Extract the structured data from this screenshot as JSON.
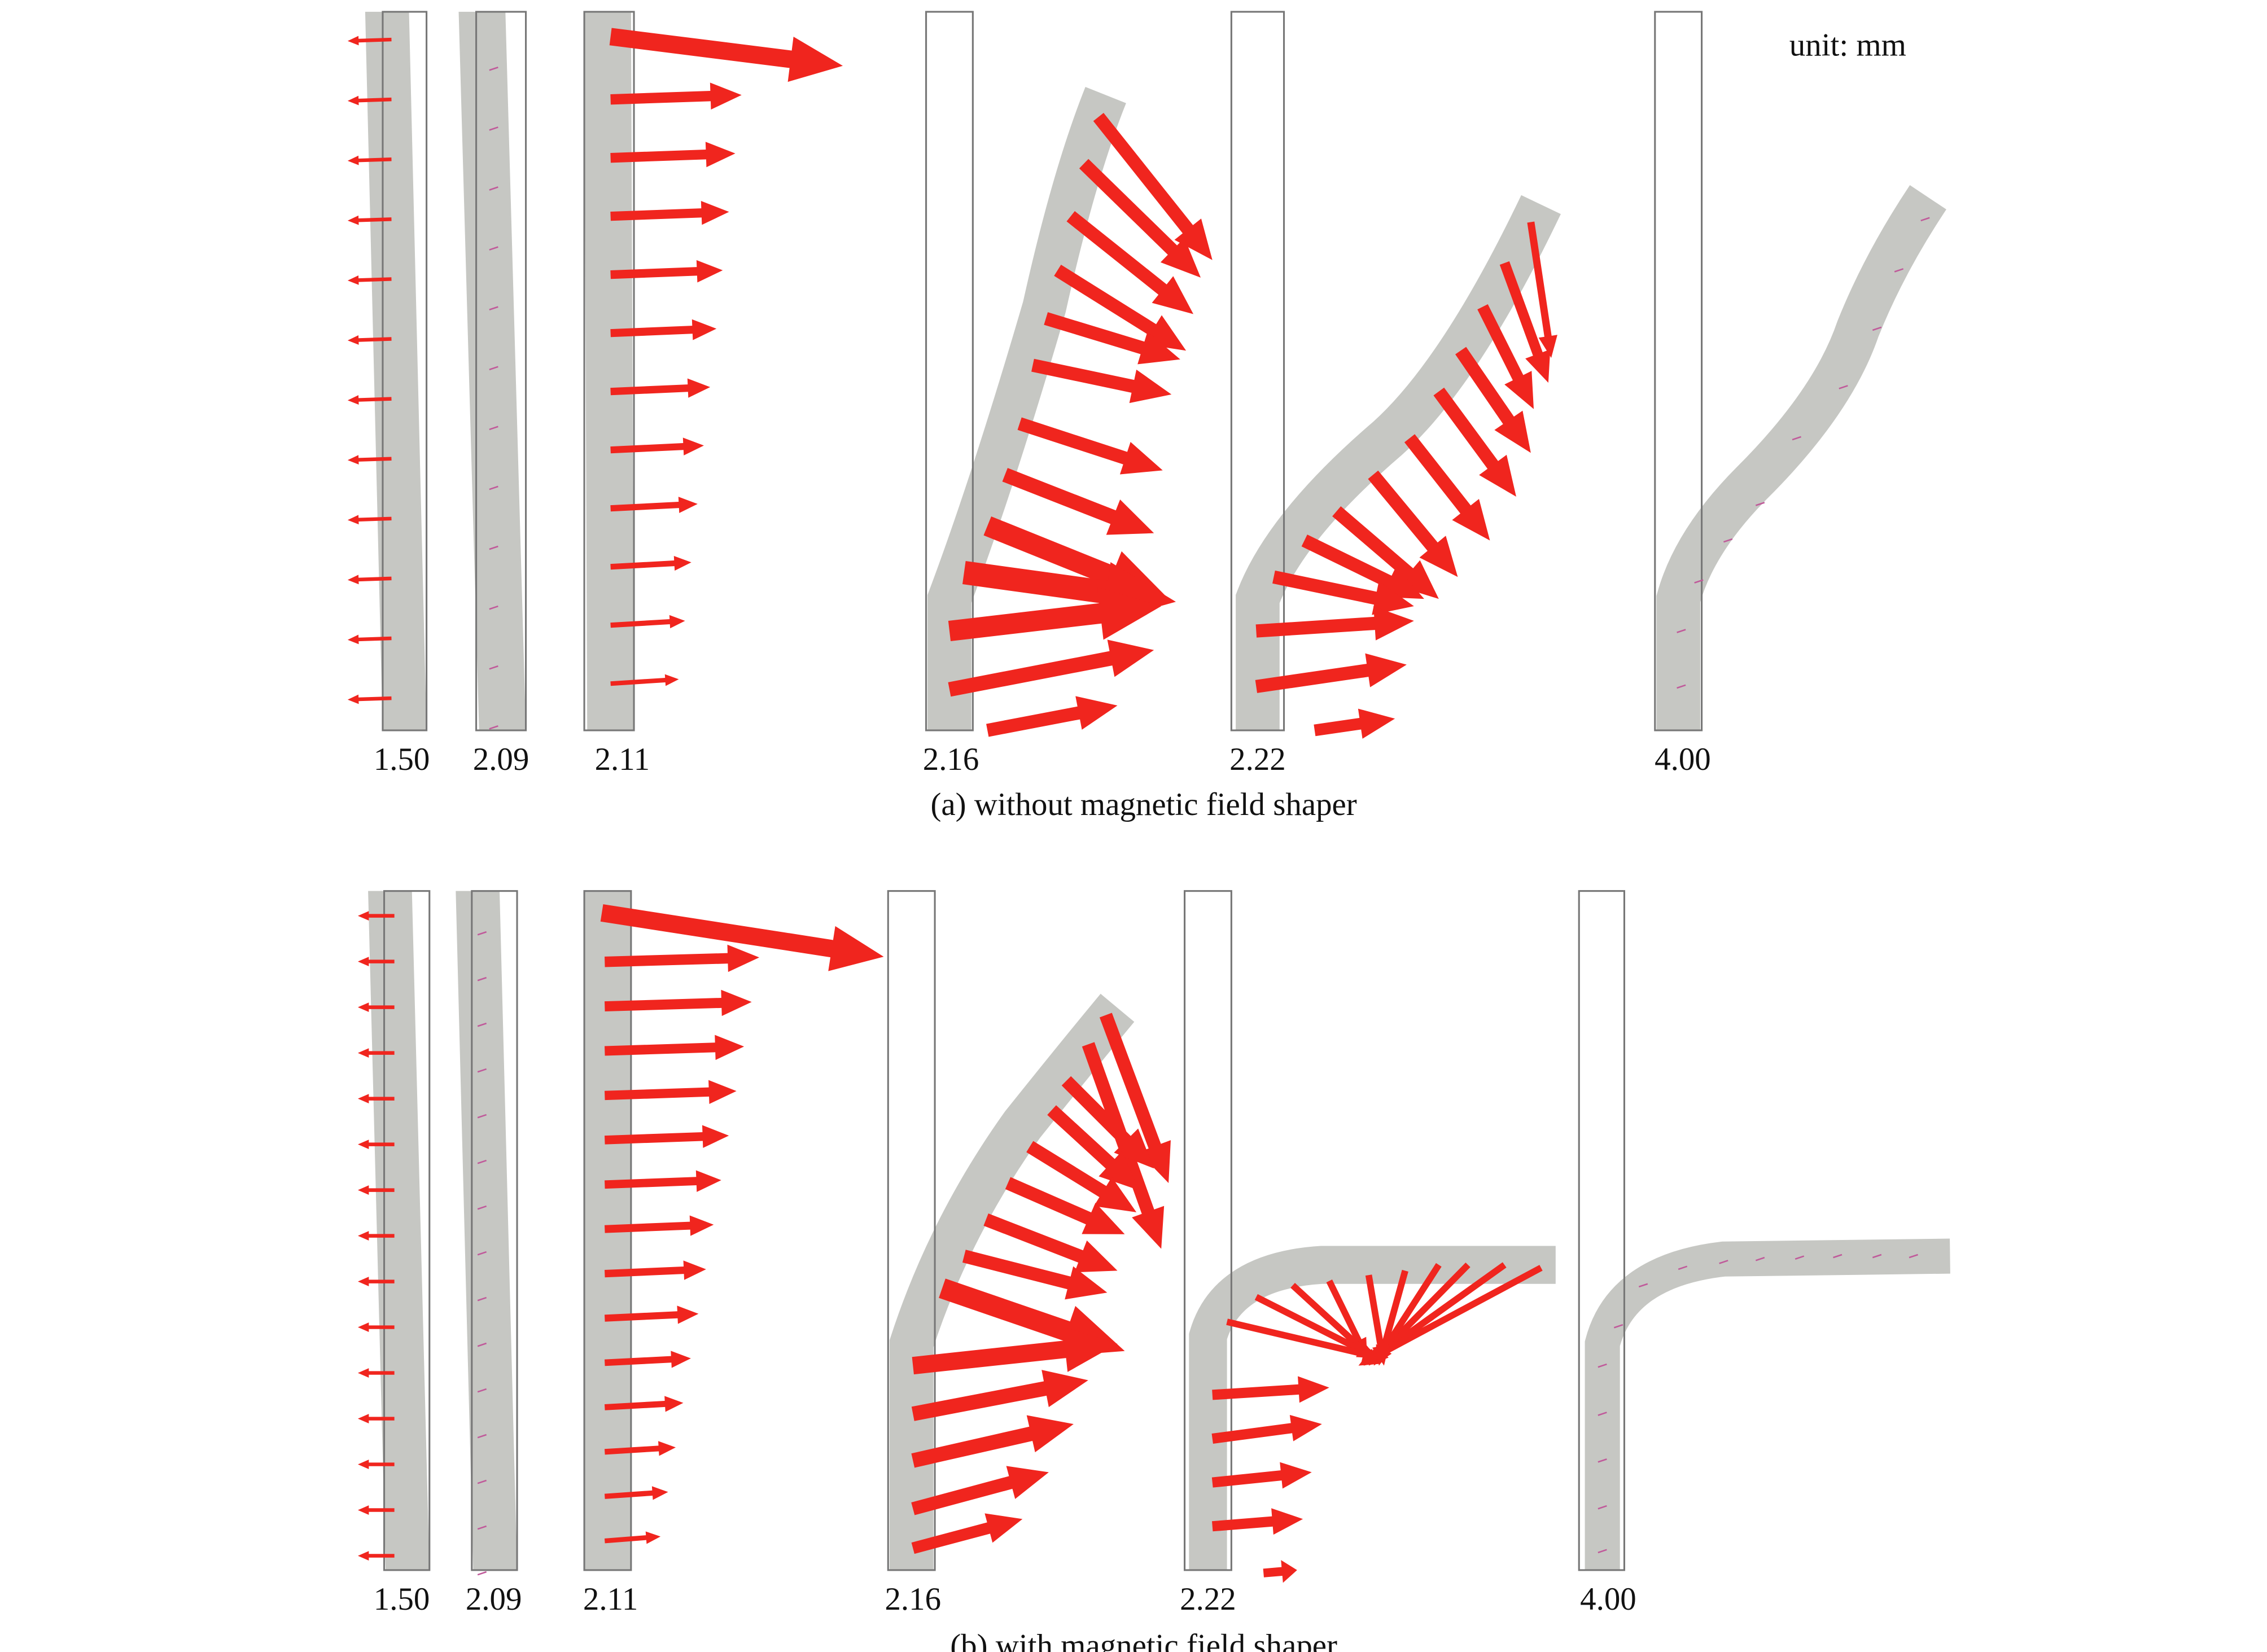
{
  "unit_label": "unit: mm",
  "panels": [
    {
      "caption": "(a) without magnetic field shaper",
      "frames": [
        {
          "label": "1.50"
        },
        {
          "label": "2.09"
        },
        {
          "label": "2.11"
        },
        {
          "label": "2.16"
        },
        {
          "label": "2.22"
        },
        {
          "label": "4.00"
        }
      ]
    },
    {
      "caption": "(b) with magnetic field shaper",
      "frames": [
        {
          "label": "1.50"
        },
        {
          "label": "2.09"
        },
        {
          "label": "2.11"
        },
        {
          "label": "2.16"
        },
        {
          "label": "2.22"
        },
        {
          "label": "4.00"
        }
      ]
    }
  ]
}
